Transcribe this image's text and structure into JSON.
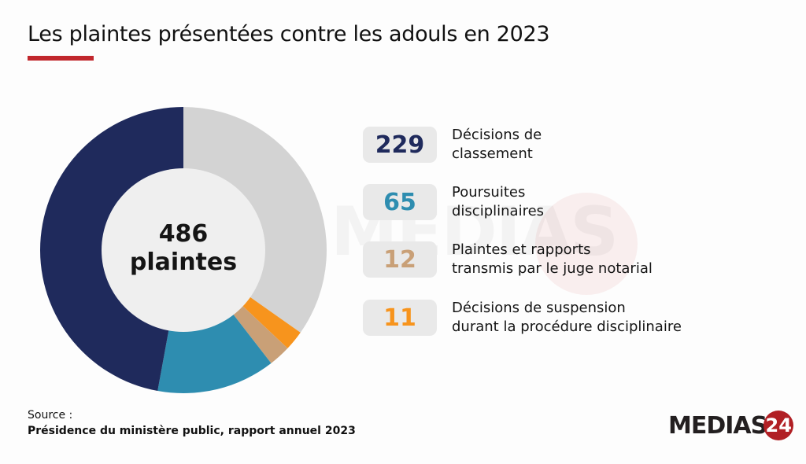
{
  "chart_data": {
    "type": "pie",
    "title": "Les plaintes présentées contre les adouls en 2023",
    "center_label": {
      "value": "486",
      "unit": "plaintes"
    },
    "total": 486,
    "slices": [
      {
        "label": "",
        "value": 169,
        "color": "#d3d3d3"
      },
      {
        "label": "Décisions de suspension durant la procédure disciplinaire",
        "value": 11,
        "color": "#f7941d"
      },
      {
        "label": "Plaintes et rapports transmis par le juge notarial",
        "value": 12,
        "color": "#c9a077"
      },
      {
        "label": "Poursuites disciplinaires",
        "value": 65,
        "color": "#2e8db0"
      },
      {
        "label": "Décisions de classement",
        "value": 229,
        "color": "#1f2a5c"
      }
    ],
    "legend": [
      {
        "value": "229",
        "label_line1": "Décisions de",
        "label_line2": "classement",
        "color": "#1f2a5c"
      },
      {
        "value": "65",
        "label_line1": "Poursuites",
        "label_line2": "disciplinaires",
        "color": "#2e8db0"
      },
      {
        "value": "12",
        "label_line1": "Plaintes et rapports",
        "label_line2": "transmis par le juge notarial",
        "color": "#c9a077"
      },
      {
        "value": "11",
        "label_line1": "Décisions de suspension",
        "label_line2": "durant la procédure disciplinaire",
        "color": "#f7941d"
      }
    ],
    "legend_position": "right"
  },
  "source": {
    "label": "Source :",
    "text": "Présidence du ministère public, rapport annuel 2023"
  },
  "logo": {
    "text": "MEDIAS",
    "number": "24"
  },
  "accent_color": "#c1272d"
}
